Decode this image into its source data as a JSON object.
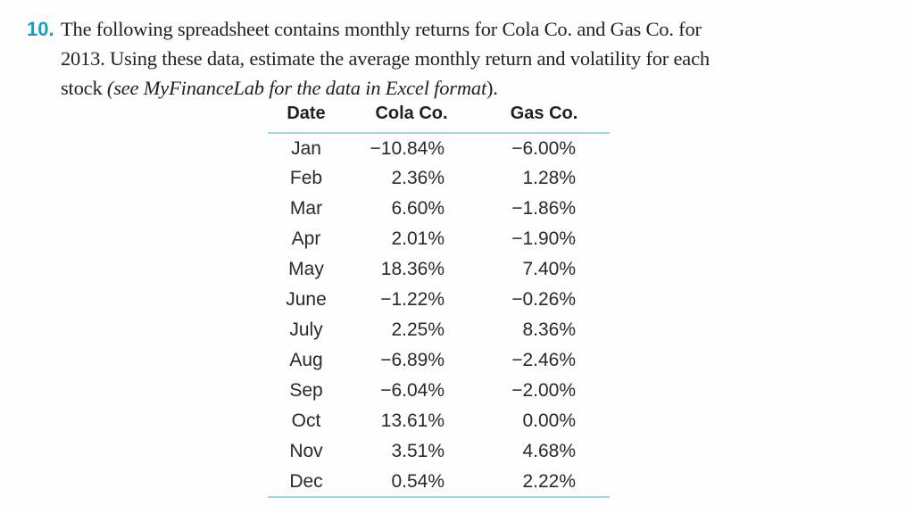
{
  "problem": {
    "number": "10.",
    "line1": "The following spreadsheet contains monthly returns for Cola Co. and Gas Co. for",
    "line2": "2013. Using these data, estimate the average monthly return and volatility for each",
    "line3_prefix": "stock ",
    "line3_italic": "(see MyFinanceLab for the data in Excel format",
    "line3_suffix": ")."
  },
  "table": {
    "headers": [
      "Date",
      "Cola Co.",
      "Gas Co."
    ],
    "rows": [
      {
        "month": "Jan",
        "cola": "−10.84%",
        "gas": "−6.00%"
      },
      {
        "month": "Feb",
        "cola": "2.36%",
        "gas": "1.28%"
      },
      {
        "month": "Mar",
        "cola": "6.60%",
        "gas": "−1.86%"
      },
      {
        "month": "Apr",
        "cola": "2.01%",
        "gas": "−1.90%"
      },
      {
        "month": "May",
        "cola": "18.36%",
        "gas": "7.40%"
      },
      {
        "month": "June",
        "cola": "−1.22%",
        "gas": "−0.26%"
      },
      {
        "month": "July",
        "cola": "2.25%",
        "gas": "8.36%"
      },
      {
        "month": "Aug",
        "cola": "−6.89%",
        "gas": "−2.46%"
      },
      {
        "month": "Sep",
        "cola": "−6.04%",
        "gas": "−2.00%"
      },
      {
        "month": "Oct",
        "cola": "13.61%",
        "gas": "0.00%"
      },
      {
        "month": "Nov",
        "cola": "3.51%",
        "gas": "4.68%"
      },
      {
        "month": "Dec",
        "cola": "0.54%",
        "gas": "2.22%"
      }
    ]
  },
  "colors": {
    "accent_blue": "#1a9cca",
    "rule_cyan": "#9fd5e8",
    "text_black": "#231f20"
  }
}
